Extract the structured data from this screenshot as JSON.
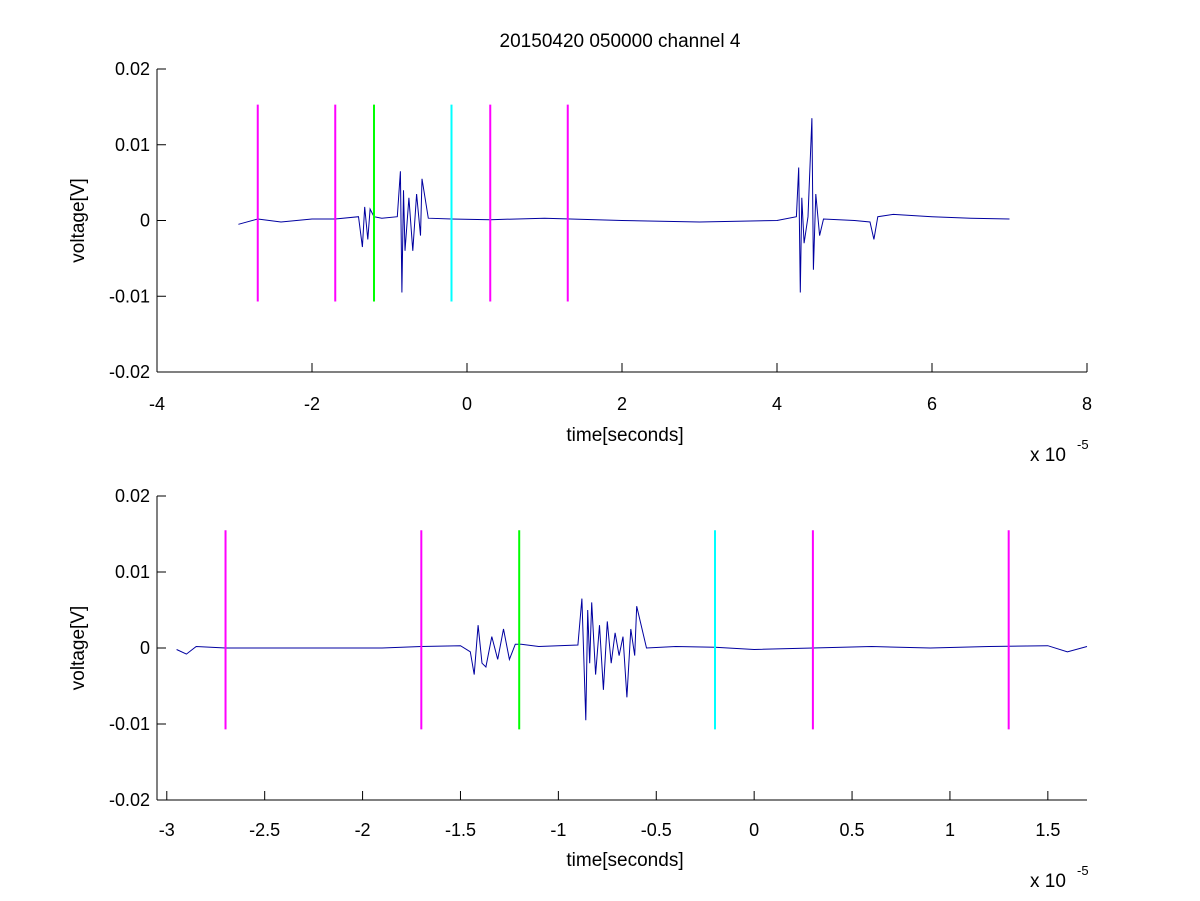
{
  "chart_data": [
    {
      "type": "line",
      "title": "20150420 050000 channel 4",
      "xlabel": "time[seconds]",
      "ylabel": "voltage[V]",
      "x_multiplier_label": "x 10",
      "x_multiplier_exponent": "-5",
      "xlim": [
        -4,
        8
      ],
      "ylim": [
        -0.02,
        0.02
      ],
      "xticks": [
        -4,
        -2,
        0,
        2,
        4,
        6,
        8
      ],
      "xtick_labels": [
        "-4",
        "-2",
        "0",
        "2",
        "4",
        "6",
        "8"
      ],
      "yticks": [
        0.02,
        0.01,
        0,
        -0.01,
        -0.02
      ],
      "ytick_labels": [
        "0.02",
        "0.01",
        "0",
        "-0.01",
        "-0.02"
      ],
      "grid": false,
      "series_color": "#0000a0",
      "series": [
        {
          "x": [
            -2.95,
            -2.7,
            -2.4,
            -2.0,
            -1.7,
            -1.4,
            -1.35,
            -1.32,
            -1.28,
            -1.25,
            -1.2,
            -1.1,
            -0.9,
            -0.86,
            -0.84,
            -0.82,
            -0.8,
            -0.75,
            -0.7,
            -0.65,
            -0.6,
            -0.58,
            -0.5,
            -0.2,
            0.3,
            1.0,
            2.0,
            3.0,
            4.0,
            4.25,
            4.28,
            4.3,
            4.32,
            4.35,
            4.4,
            4.45,
            4.47,
            4.5,
            4.55,
            4.6,
            5.0,
            5.2,
            5.25,
            5.3,
            5.5,
            6.0,
            6.5,
            7.0
          ],
          "y": [
            -0.0005,
            0.0002,
            -0.0002,
            0.0002,
            0.0002,
            0.0005,
            -0.0035,
            0.0018,
            -0.0025,
            0.0015,
            0.0005,
            0.0003,
            0.0005,
            0.0065,
            -0.0095,
            0.004,
            -0.004,
            0.003,
            -0.004,
            0.0035,
            -0.002,
            0.0055,
            0.0003,
            0.0002,
            0.0001,
            0.0003,
            0.0,
            -0.0002,
            0.0,
            0.0005,
            0.007,
            -0.0095,
            0.003,
            -0.003,
            0.0005,
            0.0135,
            -0.0065,
            0.0035,
            -0.002,
            0.0002,
            0.0,
            -0.0002,
            -0.0025,
            0.0005,
            0.0008,
            0.0005,
            0.0003,
            0.0002
          ]
        }
      ],
      "marker_lines": [
        {
          "x": -2.7,
          "color": "#ff00ff",
          "y_range": [
            -0.0107,
            0.0153
          ]
        },
        {
          "x": -1.7,
          "color": "#ff00ff",
          "y_range": [
            -0.0107,
            0.0153
          ]
        },
        {
          "x": -1.2,
          "color": "#00ff00",
          "y_range": [
            -0.0107,
            0.0153
          ]
        },
        {
          "x": -0.2,
          "color": "#00ffff",
          "y_range": [
            -0.0107,
            0.0153
          ]
        },
        {
          "x": 0.3,
          "color": "#ff00ff",
          "y_range": [
            -0.0107,
            0.0153
          ]
        },
        {
          "x": 1.3,
          "color": "#ff00ff",
          "y_range": [
            -0.0107,
            0.0153
          ]
        }
      ]
    },
    {
      "type": "line",
      "title": "",
      "xlabel": "time[seconds]",
      "ylabel": "voltage[V]",
      "x_multiplier_label": "x 10",
      "x_multiplier_exponent": "-5",
      "xlim": [
        -3.05,
        1.7
      ],
      "ylim": [
        -0.02,
        0.02
      ],
      "xticks": [
        -3,
        -2.5,
        -2,
        -1.5,
        -1,
        -0.5,
        0,
        0.5,
        1,
        1.5
      ],
      "xtick_labels": [
        "-3",
        "-2.5",
        "-2",
        "-1.5",
        "-1",
        "-0.5",
        "0",
        "0.5",
        "1",
        "1.5"
      ],
      "yticks": [
        0.02,
        0.01,
        0,
        -0.01,
        -0.02
      ],
      "ytick_labels": [
        "0.02",
        "0.01",
        "0",
        "-0.01",
        "-0.02"
      ],
      "grid": false,
      "series_color": "#0000a0",
      "series": [
        {
          "x": [
            -2.95,
            -2.9,
            -2.85,
            -2.7,
            -2.5,
            -2.2,
            -1.9,
            -1.7,
            -1.5,
            -1.45,
            -1.43,
            -1.41,
            -1.39,
            -1.37,
            -1.34,
            -1.31,
            -1.28,
            -1.25,
            -1.22,
            -1.19,
            -1.1,
            -1.0,
            -0.9,
            -0.88,
            -0.86,
            -0.85,
            -0.84,
            -0.83,
            -0.81,
            -0.79,
            -0.77,
            -0.75,
            -0.73,
            -0.71,
            -0.69,
            -0.67,
            -0.65,
            -0.63,
            -0.61,
            -0.6,
            -0.55,
            -0.4,
            -0.2,
            0.0,
            0.3,
            0.6,
            0.9,
            1.2,
            1.5,
            1.6,
            1.7
          ],
          "y": [
            -0.0002,
            -0.0008,
            0.0002,
            0.0,
            0.0,
            0.0,
            0.0,
            0.0002,
            0.0003,
            -0.0005,
            -0.0035,
            0.003,
            -0.002,
            -0.0025,
            0.0015,
            -0.0015,
            0.0025,
            -0.0015,
            0.0005,
            0.0005,
            0.0002,
            0.0003,
            0.0004,
            0.0065,
            -0.0095,
            0.005,
            -0.002,
            0.006,
            -0.0035,
            0.003,
            -0.0055,
            0.0035,
            -0.002,
            0.002,
            -0.001,
            0.0015,
            -0.0065,
            0.0025,
            -0.001,
            0.0055,
            0.0,
            0.0002,
            0.0001,
            -0.0002,
            0.0,
            0.0002,
            0.0,
            0.0002,
            0.0003,
            -0.0005,
            0.0002
          ]
        }
      ],
      "marker_lines": [
        {
          "x": -2.7,
          "color": "#ff00ff",
          "y_range": [
            -0.0107,
            0.0155
          ]
        },
        {
          "x": -1.7,
          "color": "#ff00ff",
          "y_range": [
            -0.0107,
            0.0155
          ]
        },
        {
          "x": -1.2,
          "color": "#00ff00",
          "y_range": [
            -0.0107,
            0.0155
          ]
        },
        {
          "x": -0.2,
          "color": "#00ffff",
          "y_range": [
            -0.0107,
            0.0155
          ]
        },
        {
          "x": 0.3,
          "color": "#ff00ff",
          "y_range": [
            -0.0107,
            0.0155
          ]
        },
        {
          "x": 1.3,
          "color": "#ff00ff",
          "y_range": [
            -0.0107,
            0.0155
          ]
        }
      ]
    }
  ]
}
